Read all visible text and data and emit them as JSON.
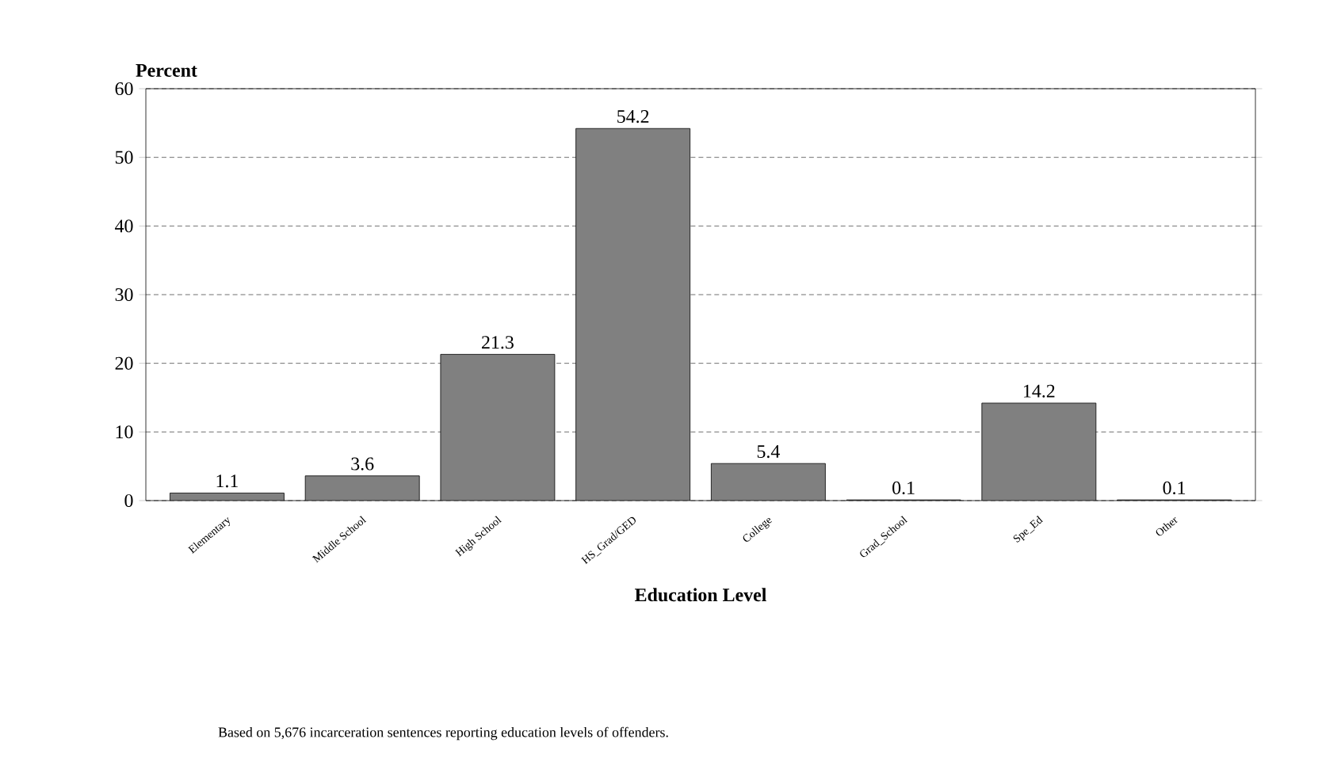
{
  "chart_data": {
    "type": "bar",
    "ylabel": "Percent",
    "xlabel": "Education Level",
    "categories": [
      "Elementary",
      "Middle School",
      "High School",
      "HS_Grad/GED",
      "College",
      "Grad_School",
      "Spe_Ed",
      "Other"
    ],
    "values": [
      1.1,
      3.6,
      21.3,
      54.2,
      5.4,
      0.1,
      14.2,
      0.1
    ],
    "color": "#808080",
    "ylim": [
      0,
      60
    ],
    "yticks": [
      0,
      10,
      20,
      30,
      40,
      50,
      60
    ],
    "grid": "y",
    "data_labels": true,
    "annotations": [
      "Based on 5,676 incarceration sentences reporting education levels of offenders."
    ]
  }
}
